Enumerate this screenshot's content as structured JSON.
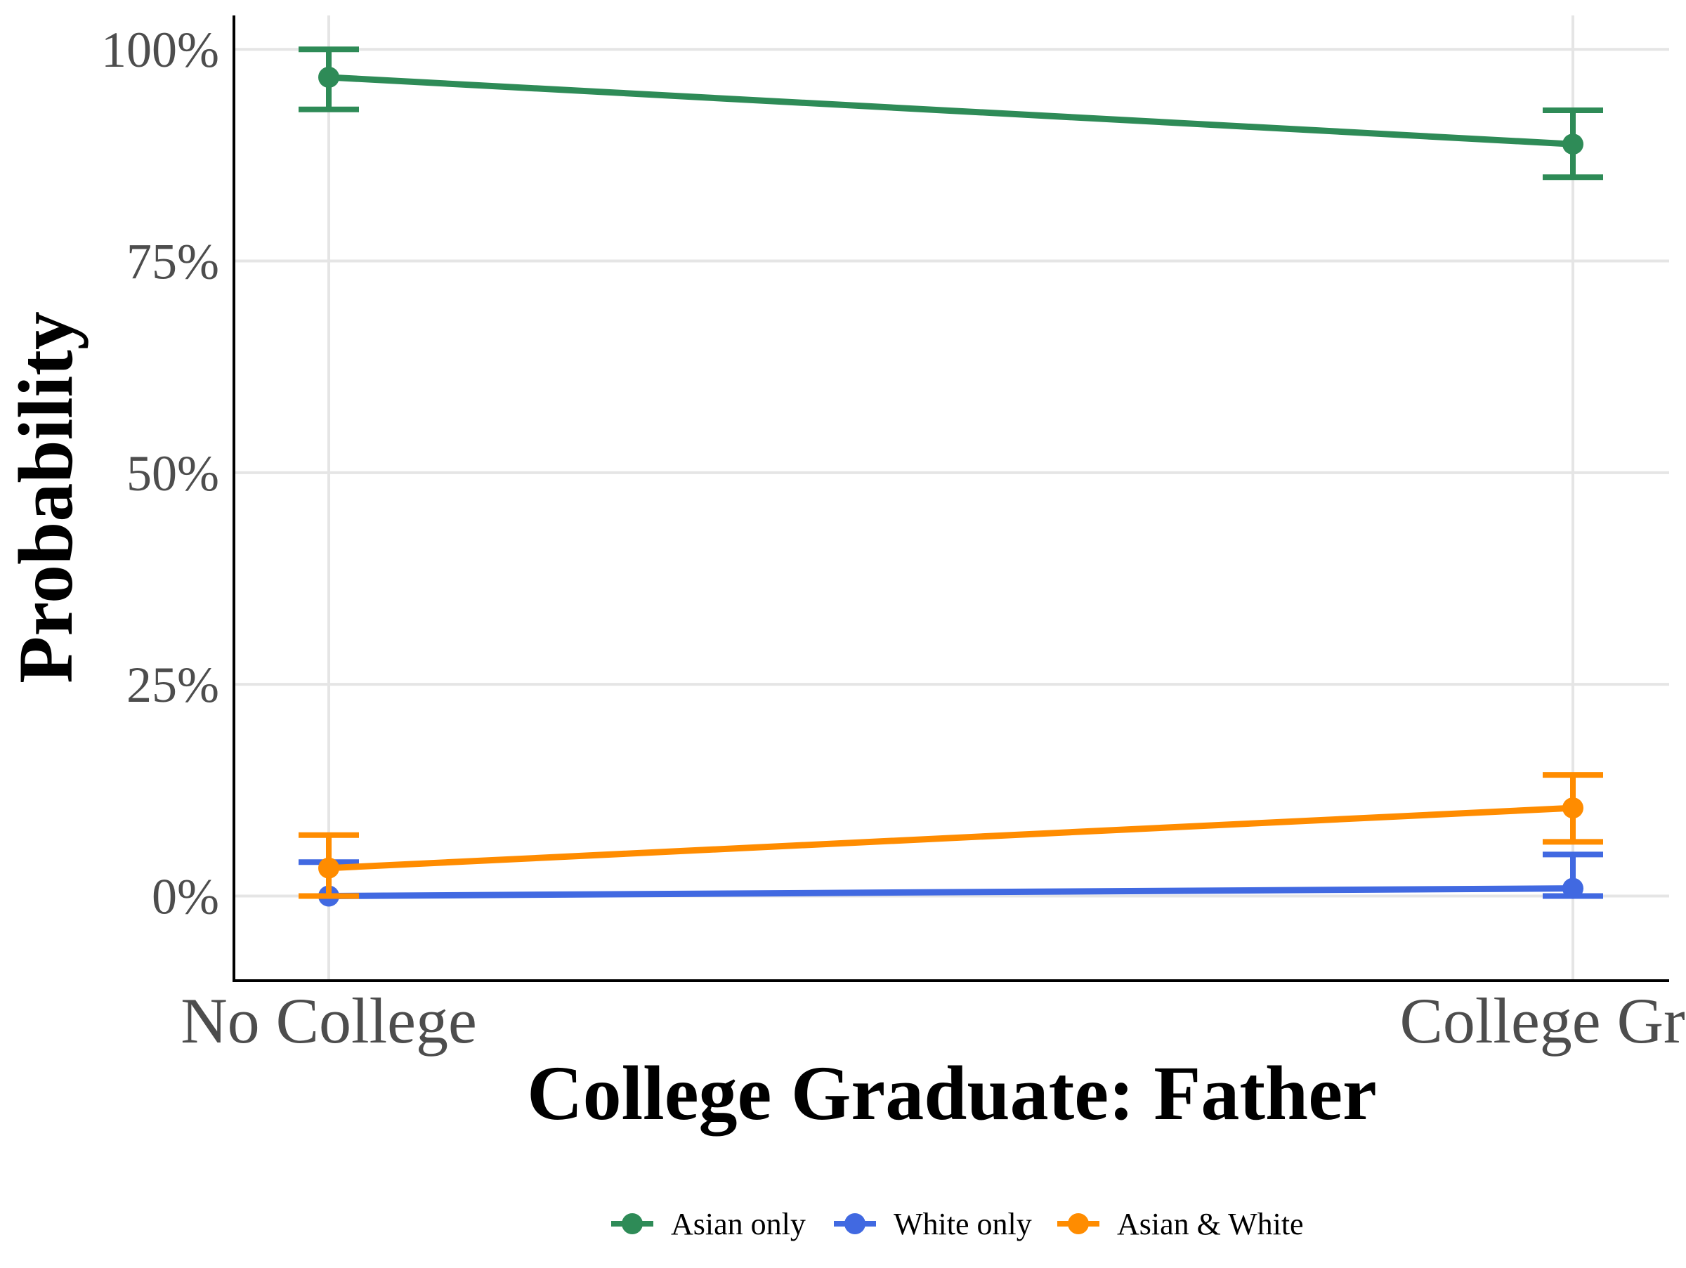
{
  "chart_data": {
    "type": "line",
    "title": "",
    "xlabel": "College Graduate: Father",
    "ylabel": "Probability",
    "categories": [
      "No College",
      "College Grad"
    ],
    "ylim": [
      -0.1,
      1.04
    ],
    "yticks": [
      0,
      0.25,
      0.5,
      0.75,
      1.0
    ],
    "ytick_labels": [
      "0%",
      "25%",
      "50%",
      "75%",
      "100%"
    ],
    "grid": true,
    "legend_position": "bottom",
    "series": [
      {
        "name": "Asian only",
        "color": "#2e8b57",
        "values": [
          0.967,
          0.888
        ],
        "lower": [
          0.929,
          0.849
        ],
        "upper": [
          1.0,
          0.928
        ]
      },
      {
        "name": "White only",
        "color": "#4169e1",
        "values": [
          0.0,
          0.009
        ],
        "lower": [
          0.0,
          0.0
        ],
        "upper": [
          0.04,
          0.049
        ]
      },
      {
        "name": "Asian & White",
        "color": "#ff8c00",
        "values": [
          0.033,
          0.104
        ],
        "lower": [
          0.0,
          0.064
        ],
        "upper": [
          0.072,
          0.143
        ]
      }
    ]
  }
}
